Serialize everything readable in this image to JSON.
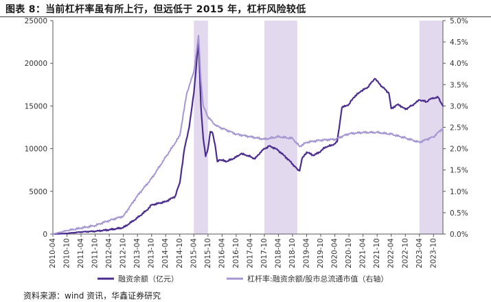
{
  "title": "图表 8：当前杠杆率虽有所上行，但远低于 2015 年，杠杆风险较低",
  "source": "资料来源：wind 资讯，华鑫证券研究",
  "colors": {
    "margin": "#4b2c8f",
    "leverage": "#a596d2",
    "shade": "#e3d9ee",
    "axis": "#555555"
  },
  "chart_data": {
    "type": "line",
    "title": "图表 8：当前杠杆率虽有所上行，但远低于 2015 年，杠杆风险较低",
    "x_range": [
      "2010-04",
      "2024-02"
    ],
    "x_ticks": [
      "2010-04",
      "2010-10",
      "2011-04",
      "2011-10",
      "2012-04",
      "2012-10",
      "2013-04",
      "2013-10",
      "2014-04",
      "2014-10",
      "2015-04",
      "2015-10",
      "2016-04",
      "2016-10",
      "2017-04",
      "2017-10",
      "2018-04",
      "2018-10",
      "2019-04",
      "2019-10",
      "2020-04",
      "2020-10",
      "2021-04",
      "2021-10",
      "2022-04",
      "2022-10",
      "2023-04",
      "2023-10"
    ],
    "y_left": {
      "min": 0,
      "max": 25000,
      "ticks": [
        "0",
        "5000",
        "10000",
        "15000",
        "20000",
        "25000"
      ]
    },
    "y_right": {
      "min": 0,
      "max": 5.0,
      "ticks": [
        "0.0%",
        "0.5%",
        "1.0%",
        "1.5%",
        "2.0%",
        "2.5%",
        "3.0%",
        "3.5%",
        "4.0%",
        "4.5%",
        "5.0%"
      ]
    },
    "shaded_periods": [
      [
        "2015-04",
        "2015-10"
      ],
      [
        "2017-10",
        "2018-12"
      ],
      [
        "2023-04",
        "2024-02"
      ]
    ],
    "legend": {
      "placement": "bottom"
    },
    "series": [
      {
        "name": "融资余额（亿元）",
        "axis": "left",
        "points": [
          [
            "2010-04",
            0
          ],
          [
            "2010-10",
            80
          ],
          [
            "2011-04",
            250
          ],
          [
            "2011-10",
            330
          ],
          [
            "2012-04",
            500
          ],
          [
            "2012-10",
            750
          ],
          [
            "2013-04",
            1900
          ],
          [
            "2013-08",
            2800
          ],
          [
            "2013-10",
            3400
          ],
          [
            "2014-04",
            3800
          ],
          [
            "2014-08",
            4400
          ],
          [
            "2014-10",
            6000
          ],
          [
            "2014-12",
            10000
          ],
          [
            "2015-02",
            12500
          ],
          [
            "2015-04",
            16500
          ],
          [
            "2015-06",
            22700
          ],
          [
            "2015-07",
            15000
          ],
          [
            "2015-08",
            11200
          ],
          [
            "2015-09",
            9100
          ],
          [
            "2015-10",
            10000
          ],
          [
            "2015-11",
            12000
          ],
          [
            "2015-12",
            11800
          ],
          [
            "2016-01",
            10500
          ],
          [
            "2016-02",
            8500
          ],
          [
            "2016-03",
            8700
          ],
          [
            "2016-06",
            8500
          ],
          [
            "2016-10",
            9000
          ],
          [
            "2016-12",
            9400
          ],
          [
            "2017-03",
            9200
          ],
          [
            "2017-06",
            8800
          ],
          [
            "2017-09",
            9800
          ],
          [
            "2017-12",
            10300
          ],
          [
            "2018-03",
            10000
          ],
          [
            "2018-06",
            9300
          ],
          [
            "2018-09",
            8500
          ],
          [
            "2018-12",
            7600
          ],
          [
            "2019-01",
            7400
          ],
          [
            "2019-02",
            8800
          ],
          [
            "2019-04",
            9600
          ],
          [
            "2019-07",
            9200
          ],
          [
            "2019-10",
            9700
          ],
          [
            "2019-12",
            10200
          ],
          [
            "2020-03",
            10400
          ],
          [
            "2020-05",
            10800
          ],
          [
            "2020-07",
            14800
          ],
          [
            "2020-10",
            15200
          ],
          [
            "2020-12",
            16000
          ],
          [
            "2021-03",
            16700
          ],
          [
            "2021-06",
            17200
          ],
          [
            "2021-09",
            18200
          ],
          [
            "2021-12",
            17300
          ],
          [
            "2022-03",
            16500
          ],
          [
            "2022-04",
            14700
          ],
          [
            "2022-07",
            15200
          ],
          [
            "2022-10",
            14600
          ],
          [
            "2023-01",
            15100
          ],
          [
            "2023-04",
            15700
          ],
          [
            "2023-07",
            15500
          ],
          [
            "2023-09",
            15900
          ],
          [
            "2023-12",
            16000
          ],
          [
            "2024-02",
            15000
          ]
        ]
      },
      {
        "name": "杠杆率:融资余额/股市总流通市值（右轴）",
        "axis": "right",
        "points": [
          [
            "2010-04",
            0.0
          ],
          [
            "2010-10",
            0.08
          ],
          [
            "2011-04",
            0.14
          ],
          [
            "2011-10",
            0.2
          ],
          [
            "2012-04",
            0.32
          ],
          [
            "2012-10",
            0.42
          ],
          [
            "2013-04",
            0.9
          ],
          [
            "2013-10",
            1.3
          ],
          [
            "2014-04",
            1.8
          ],
          [
            "2014-10",
            2.3
          ],
          [
            "2015-01",
            3.3
          ],
          [
            "2015-04",
            3.8
          ],
          [
            "2015-06",
            4.65
          ],
          [
            "2015-07",
            3.6
          ],
          [
            "2015-08",
            3.0
          ],
          [
            "2015-10",
            2.75
          ],
          [
            "2016-01",
            2.55
          ],
          [
            "2016-04",
            2.48
          ],
          [
            "2016-10",
            2.34
          ],
          [
            "2017-04",
            2.28
          ],
          [
            "2017-10",
            2.22
          ],
          [
            "2018-04",
            2.28
          ],
          [
            "2018-10",
            2.24
          ],
          [
            "2019-01",
            2.05
          ],
          [
            "2019-04",
            2.15
          ],
          [
            "2019-10",
            2.2
          ],
          [
            "2020-04",
            2.22
          ],
          [
            "2020-10",
            2.35
          ],
          [
            "2021-04",
            2.38
          ],
          [
            "2021-10",
            2.38
          ],
          [
            "2022-04",
            2.34
          ],
          [
            "2022-10",
            2.25
          ],
          [
            "2023-04",
            2.15
          ],
          [
            "2023-10",
            2.28
          ],
          [
            "2024-02",
            2.48
          ]
        ]
      }
    ]
  }
}
